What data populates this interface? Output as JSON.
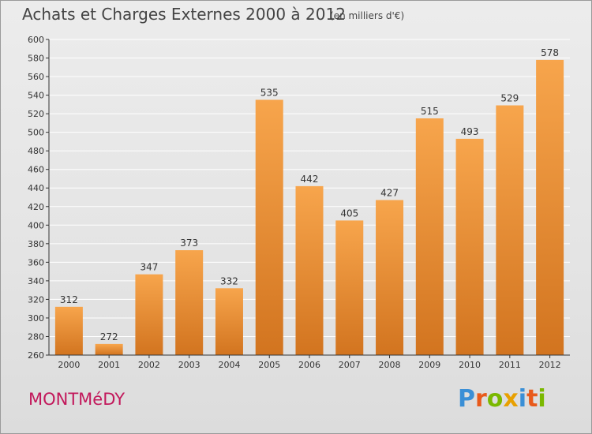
{
  "title": "Achats et Charges Externes 2000 à 2012",
  "unit": "(en milliers d'€)",
  "town": "MONTMéDY",
  "logo": {
    "text": "Proxiti",
    "letters": [
      {
        "ch": "P",
        "color": "#3a8fd6"
      },
      {
        "ch": "r",
        "color": "#e85a1b"
      },
      {
        "ch": "o",
        "color": "#7ab800"
      },
      {
        "ch": "x",
        "color": "#e8a000"
      },
      {
        "ch": "i",
        "color": "#3a8fd6"
      },
      {
        "ch": "t",
        "color": "#e85a1b"
      },
      {
        "ch": "i",
        "color": "#7ab800"
      }
    ]
  },
  "colors": {
    "bar_light": "#f7a54c",
    "bar_dark": "#d2741f",
    "axis": "#333333",
    "grid": "#ffffff"
  },
  "chart_data": {
    "type": "bar",
    "categories": [
      "2000",
      "2001",
      "2002",
      "2003",
      "2004",
      "2005",
      "2006",
      "2007",
      "2008",
      "2009",
      "2010",
      "2011",
      "2012"
    ],
    "values": [
      312,
      272,
      347,
      373,
      332,
      535,
      442,
      405,
      427,
      515,
      493,
      529,
      578
    ],
    "data_labels": [
      "312",
      "272",
      "347",
      "373",
      "332",
      "535",
      "442",
      "405",
      "427",
      "515",
      "493",
      "529",
      "578"
    ],
    "ylim": [
      260,
      600
    ],
    "yticks": [
      "260",
      "280",
      "300",
      "320",
      "340",
      "360",
      "380",
      "400",
      "420",
      "440",
      "460",
      "480",
      "500",
      "520",
      "540",
      "560",
      "580",
      "600"
    ],
    "grid": true,
    "xlabel": "",
    "ylabel": ""
  }
}
